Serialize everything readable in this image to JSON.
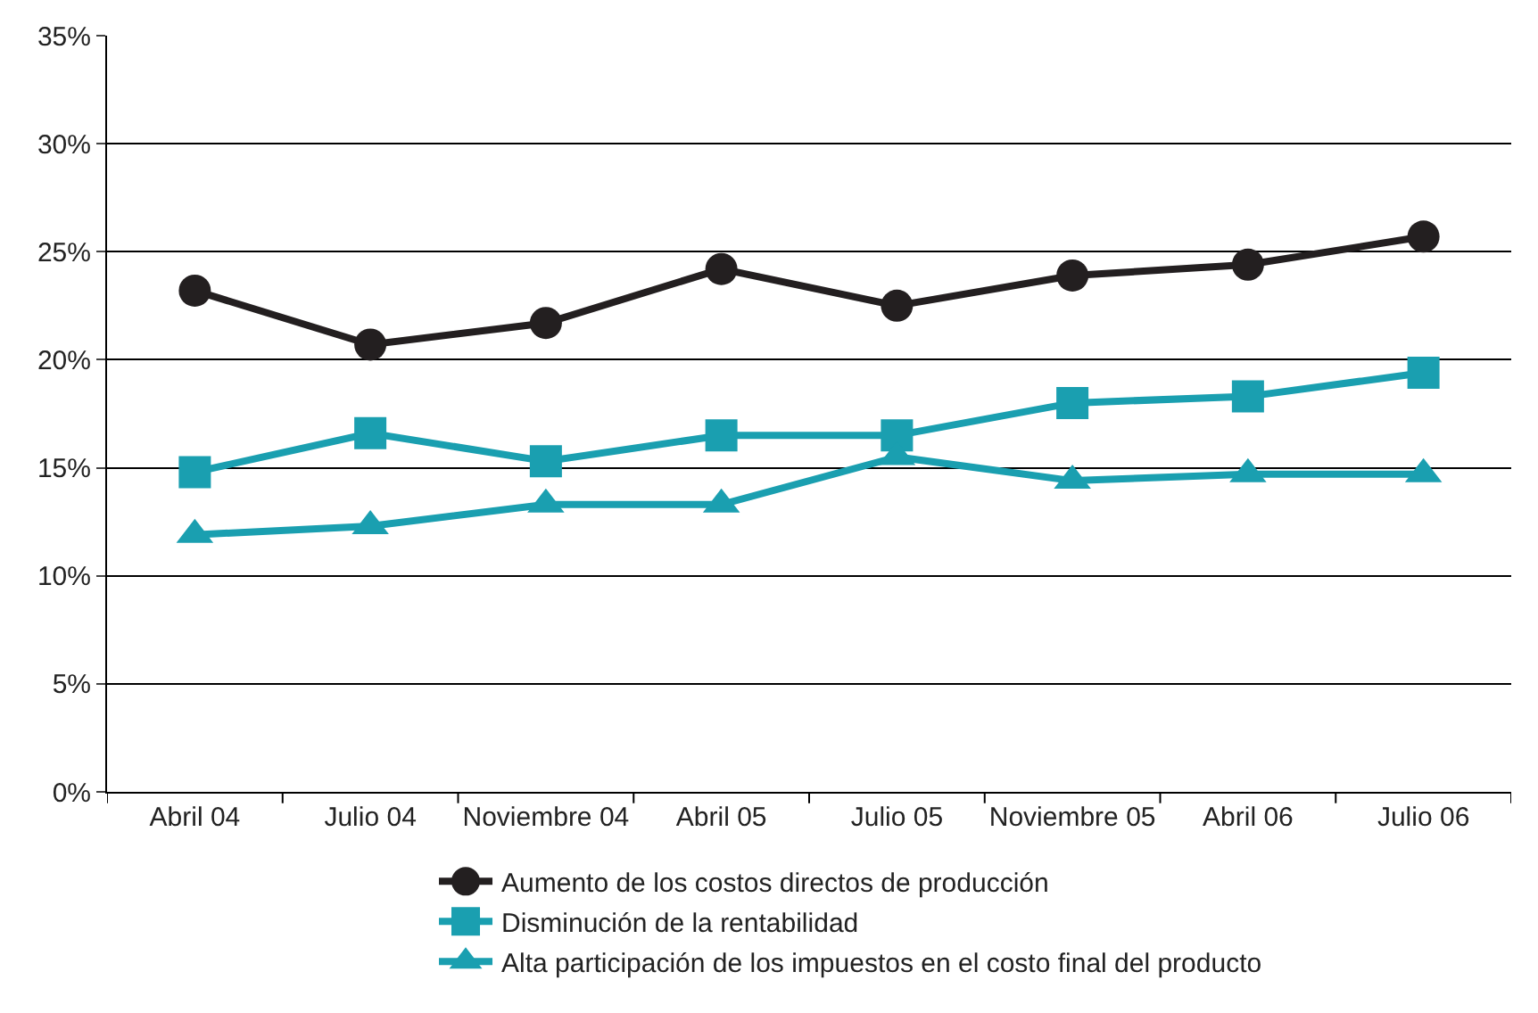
{
  "chart_data": {
    "type": "line",
    "categories": [
      "Abril 04",
      "Julio 04",
      "Noviembre 04",
      "Abril 05",
      "Julio 05",
      "Noviembre 05",
      "Abril 06",
      "Julio 06"
    ],
    "series": [
      {
        "name": "Aumento de los costos directos de producción",
        "color": "#231f20",
        "marker": "circle",
        "values": [
          23.2,
          20.7,
          21.7,
          24.2,
          22.5,
          23.9,
          24.4,
          25.7
        ]
      },
      {
        "name": "Disminución de la rentabilidad",
        "color": "#1a9fb0",
        "marker": "square",
        "values": [
          14.8,
          16.6,
          15.3,
          16.5,
          16.5,
          18.0,
          18.3,
          19.4
        ]
      },
      {
        "name": "Alta participación de los impuestos en el costo final del producto",
        "color": "#1a9fb0",
        "marker": "triangle",
        "values": [
          11.9,
          12.3,
          13.3,
          13.3,
          15.5,
          14.4,
          14.7,
          14.7
        ]
      }
    ],
    "ylim": [
      0,
      35
    ],
    "yticks": [
      {
        "value": 0,
        "label": "0%"
      },
      {
        "value": 5,
        "label": "5%"
      },
      {
        "value": 10,
        "label": "10%"
      },
      {
        "value": 15,
        "label": "15%"
      },
      {
        "value": 20,
        "label": "20%"
      },
      {
        "value": 25,
        "label": "25%"
      },
      {
        "value": 30,
        "label": "30%"
      },
      {
        "value": 35,
        "label": "35%"
      }
    ],
    "grid": "y",
    "legend": "bottom",
    "line_style": "solid"
  }
}
